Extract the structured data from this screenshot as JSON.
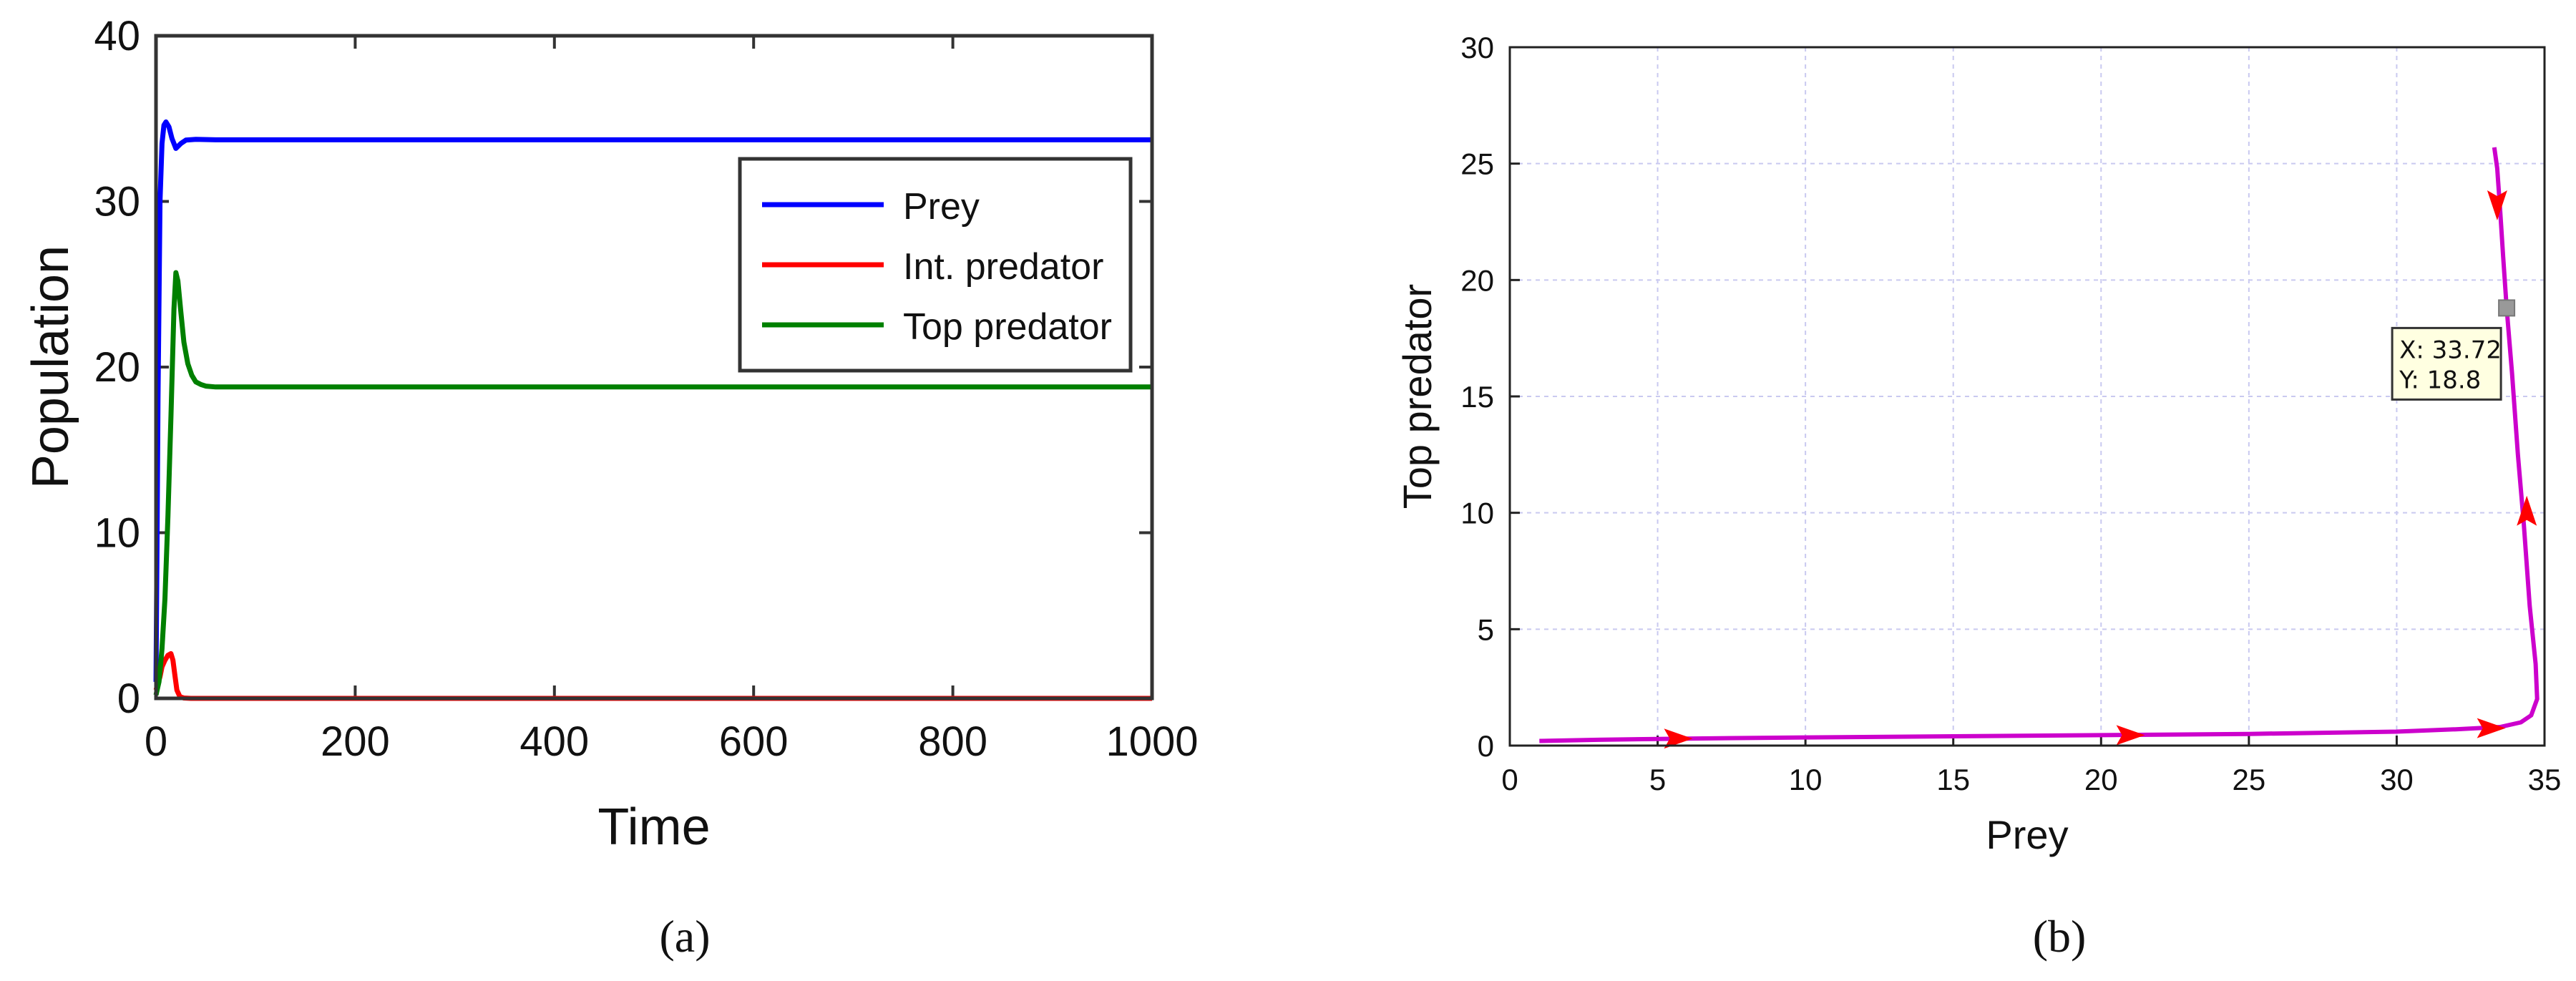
{
  "chart_data": [
    {
      "type": "line",
      "caption": "(a)",
      "xlabel": "Time",
      "ylabel": "Population",
      "xlim": [
        0,
        1000
      ],
      "ylim": [
        0,
        40
      ],
      "xticks": [
        0,
        200,
        400,
        600,
        800,
        1000
      ],
      "yticks": [
        0,
        10,
        20,
        30,
        40
      ],
      "grid": false,
      "legend_position": "top-right",
      "series": [
        {
          "name": "Prey",
          "color": "#0000ff",
          "x": [
            0,
            1,
            2,
            4,
            6,
            8,
            10,
            13,
            16,
            20,
            25,
            30,
            40,
            60,
            100,
            200,
            400,
            600,
            800,
            1000
          ],
          "y": [
            1,
            9,
            18,
            30,
            33.5,
            34.6,
            34.8,
            34.5,
            33.8,
            33.2,
            33.5,
            33.7,
            33.75,
            33.72,
            33.72,
            33.72,
            33.72,
            33.72,
            33.72,
            33.72
          ]
        },
        {
          "name": "Int. predator",
          "color": "#ff0000",
          "x": [
            0,
            2,
            4,
            6,
            9,
            12,
            15,
            17,
            19,
            21,
            24,
            28,
            35,
            60,
            1000
          ],
          "y": [
            0.5,
            0.9,
            1.3,
            1.9,
            2.3,
            2.6,
            2.7,
            2.3,
            1.4,
            0.5,
            0.1,
            0.02,
            0,
            0,
            0
          ]
        },
        {
          "name": "Top predator",
          "color": "#008000",
          "x": [
            0,
            3,
            6,
            9,
            12,
            15,
            18,
            20,
            22,
            25,
            28,
            32,
            36,
            40,
            45,
            50,
            60,
            80,
            100,
            200,
            1000
          ],
          "y": [
            0.2,
            1,
            3,
            6,
            11,
            17,
            23.5,
            25.7,
            25.2,
            23.3,
            21.5,
            20.2,
            19.5,
            19.1,
            18.95,
            18.85,
            18.8,
            18.8,
            18.8,
            18.8,
            18.8
          ]
        }
      ]
    },
    {
      "type": "line",
      "caption": "(b)",
      "xlabel": "Prey",
      "ylabel": "Top predator",
      "xlim": [
        0,
        35
      ],
      "ylim": [
        0,
        30
      ],
      "xticks": [
        0,
        5,
        10,
        15,
        20,
        25,
        30,
        35
      ],
      "yticks": [
        0,
        5,
        10,
        15,
        20,
        25,
        30
      ],
      "grid": true,
      "series": [
        {
          "color": "#cc00cc",
          "x": [
            1,
            3,
            6,
            10,
            15,
            20,
            25,
            30,
            32,
            33.5,
            34.2,
            34.55,
            34.75,
            34.7,
            34.5,
            34.3,
            34.1,
            33.9,
            33.72,
            33.6,
            33.5,
            33.4,
            33.3
          ],
          "y": [
            0.2,
            0.25,
            0.3,
            0.35,
            0.4,
            0.45,
            0.5,
            0.6,
            0.7,
            0.8,
            1.0,
            1.3,
            2.0,
            3.5,
            6.0,
            9.5,
            12.5,
            16.0,
            18.8,
            21.0,
            23.0,
            24.8,
            25.7
          ]
        }
      ],
      "arrows": [
        {
          "x": 5.7,
          "y": 0.3,
          "direction": "right"
        },
        {
          "x": 21.0,
          "y": 0.45,
          "direction": "right"
        },
        {
          "x": 33.2,
          "y": 0.75,
          "direction": "right"
        },
        {
          "x": 34.4,
          "y": 10.0,
          "direction": "up"
        },
        {
          "x": 33.4,
          "y": 23.3,
          "direction": "down"
        }
      ],
      "datatip": {
        "x_value": 33.72,
        "y_value": 18.8,
        "x_text": "X: 33.72",
        "y_text": "Y: 18.8"
      }
    }
  ]
}
